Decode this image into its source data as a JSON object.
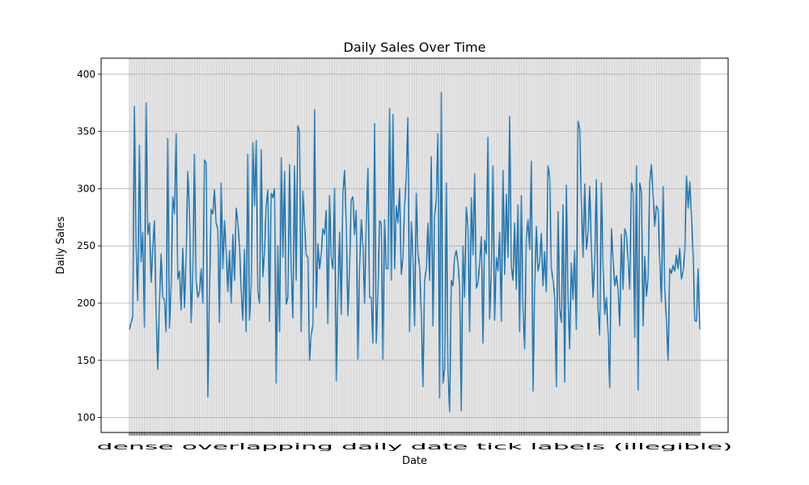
{
  "chart_data": {
    "type": "line",
    "title": "Daily Sales Over Time",
    "xlabel": "Date",
    "ylabel": "Daily Sales",
    "ylim": [
      87,
      414
    ],
    "yticks": [
      100,
      150,
      200,
      250,
      300,
      350,
      400
    ],
    "grid": true,
    "legend": "none",
    "x_tick_labels_note": "dense overlapping daily date tick labels (illegible)",
    "colors": {
      "line": "#1f77b4",
      "grid": "#b0b0b0"
    },
    "series": [
      {
        "values": [
          177,
          183,
          188,
          372,
          250,
          202,
          338,
          236,
          262,
          179,
          375,
          260,
          270,
          218,
          248,
          272,
          190,
          142,
          200,
          243,
          205,
          203,
          175,
          344,
          178,
          215,
          293,
          278,
          348,
          221,
          228,
          194,
          248,
          196,
          240,
          315,
          281,
          183,
          227,
          330,
          219,
          205,
          210,
          230,
          200,
          325,
          322,
          118,
          210,
          282,
          278,
          299,
          270,
          265,
          183,
          305,
          230,
          272,
          245,
          210,
          246,
          200,
          260,
          220,
          283,
          270,
          250,
          212,
          185,
          247,
          175,
          330,
          185,
          215,
          340,
          285,
          342,
          210,
          200,
          334,
          223,
          245,
          285,
          299,
          184,
          296,
          292,
          300,
          130,
          250,
          175,
          327,
          240,
          315,
          199,
          205,
          321,
          230,
          187,
          320,
          220,
          355,
          350,
          175,
          298,
          270,
          242,
          240,
          150,
          173,
          180,
          369,
          196,
          252,
          230,
          243,
          265,
          260,
          281,
          182,
          294,
          240,
          230,
          300,
          132,
          210,
          262,
          190,
          296,
          316,
          270,
          189,
          230,
          290,
          293,
          260,
          281,
          151,
          232,
          273,
          250,
          200,
          270,
          318,
          205,
          205,
          165,
          357,
          165,
          209,
          272,
          270,
          151,
          273,
          230,
          230,
          370,
          220,
          365,
          230,
          285,
          270,
          300,
          225,
          240,
          285,
          310,
          362,
          175,
          271,
          240,
          180,
          296,
          243,
          232,
          190,
          127,
          220,
          230,
          270,
          220,
          328,
          180,
          276,
          290,
          348,
          117,
          384,
          130,
          143,
          305,
          140,
          105,
          220,
          215,
          240,
          246,
          235,
          215,
          106,
          250,
          205,
          284,
          266,
          175,
          292,
          242,
          313,
          213,
          218,
          235,
          258,
          165,
          255,
          243,
          345,
          186,
          226,
          320,
          185,
          240,
          228,
          262,
          184,
          316,
          225,
          295,
          240,
          363,
          232,
          220,
          270,
          212,
          286,
          175,
          294,
          195,
          160,
          257,
          273,
          247,
          324,
          123,
          215,
          267,
          228,
          236,
          261,
          215,
          245,
          210,
          320,
          310,
          230,
          220,
          205,
          127,
          280,
          195,
          183,
          286,
          131,
          303,
          204,
          160,
          235,
          203,
          246,
          177,
          359,
          352,
          287,
          240,
          304,
          247,
          262,
          302,
          248,
          205,
          236,
          308,
          195,
          172,
          305,
          231,
          190,
          205,
          175,
          126,
          265,
          238,
          215,
          224,
          212,
          180,
          260,
          212,
          265,
          260,
          239,
          212,
          305,
          297,
          170,
          320,
          124,
          305,
          297,
          180,
          241,
          206,
          222,
          306,
          321,
          295,
          267,
          285,
          282,
          237,
          201,
          302,
          211,
          185,
          150,
          230,
          226,
          233,
          228,
          242,
          230,
          248,
          221,
          228,
          244,
          311,
          283,
          306,
          277,
          242,
          185,
          184,
          230,
          177
        ]
      }
    ]
  }
}
